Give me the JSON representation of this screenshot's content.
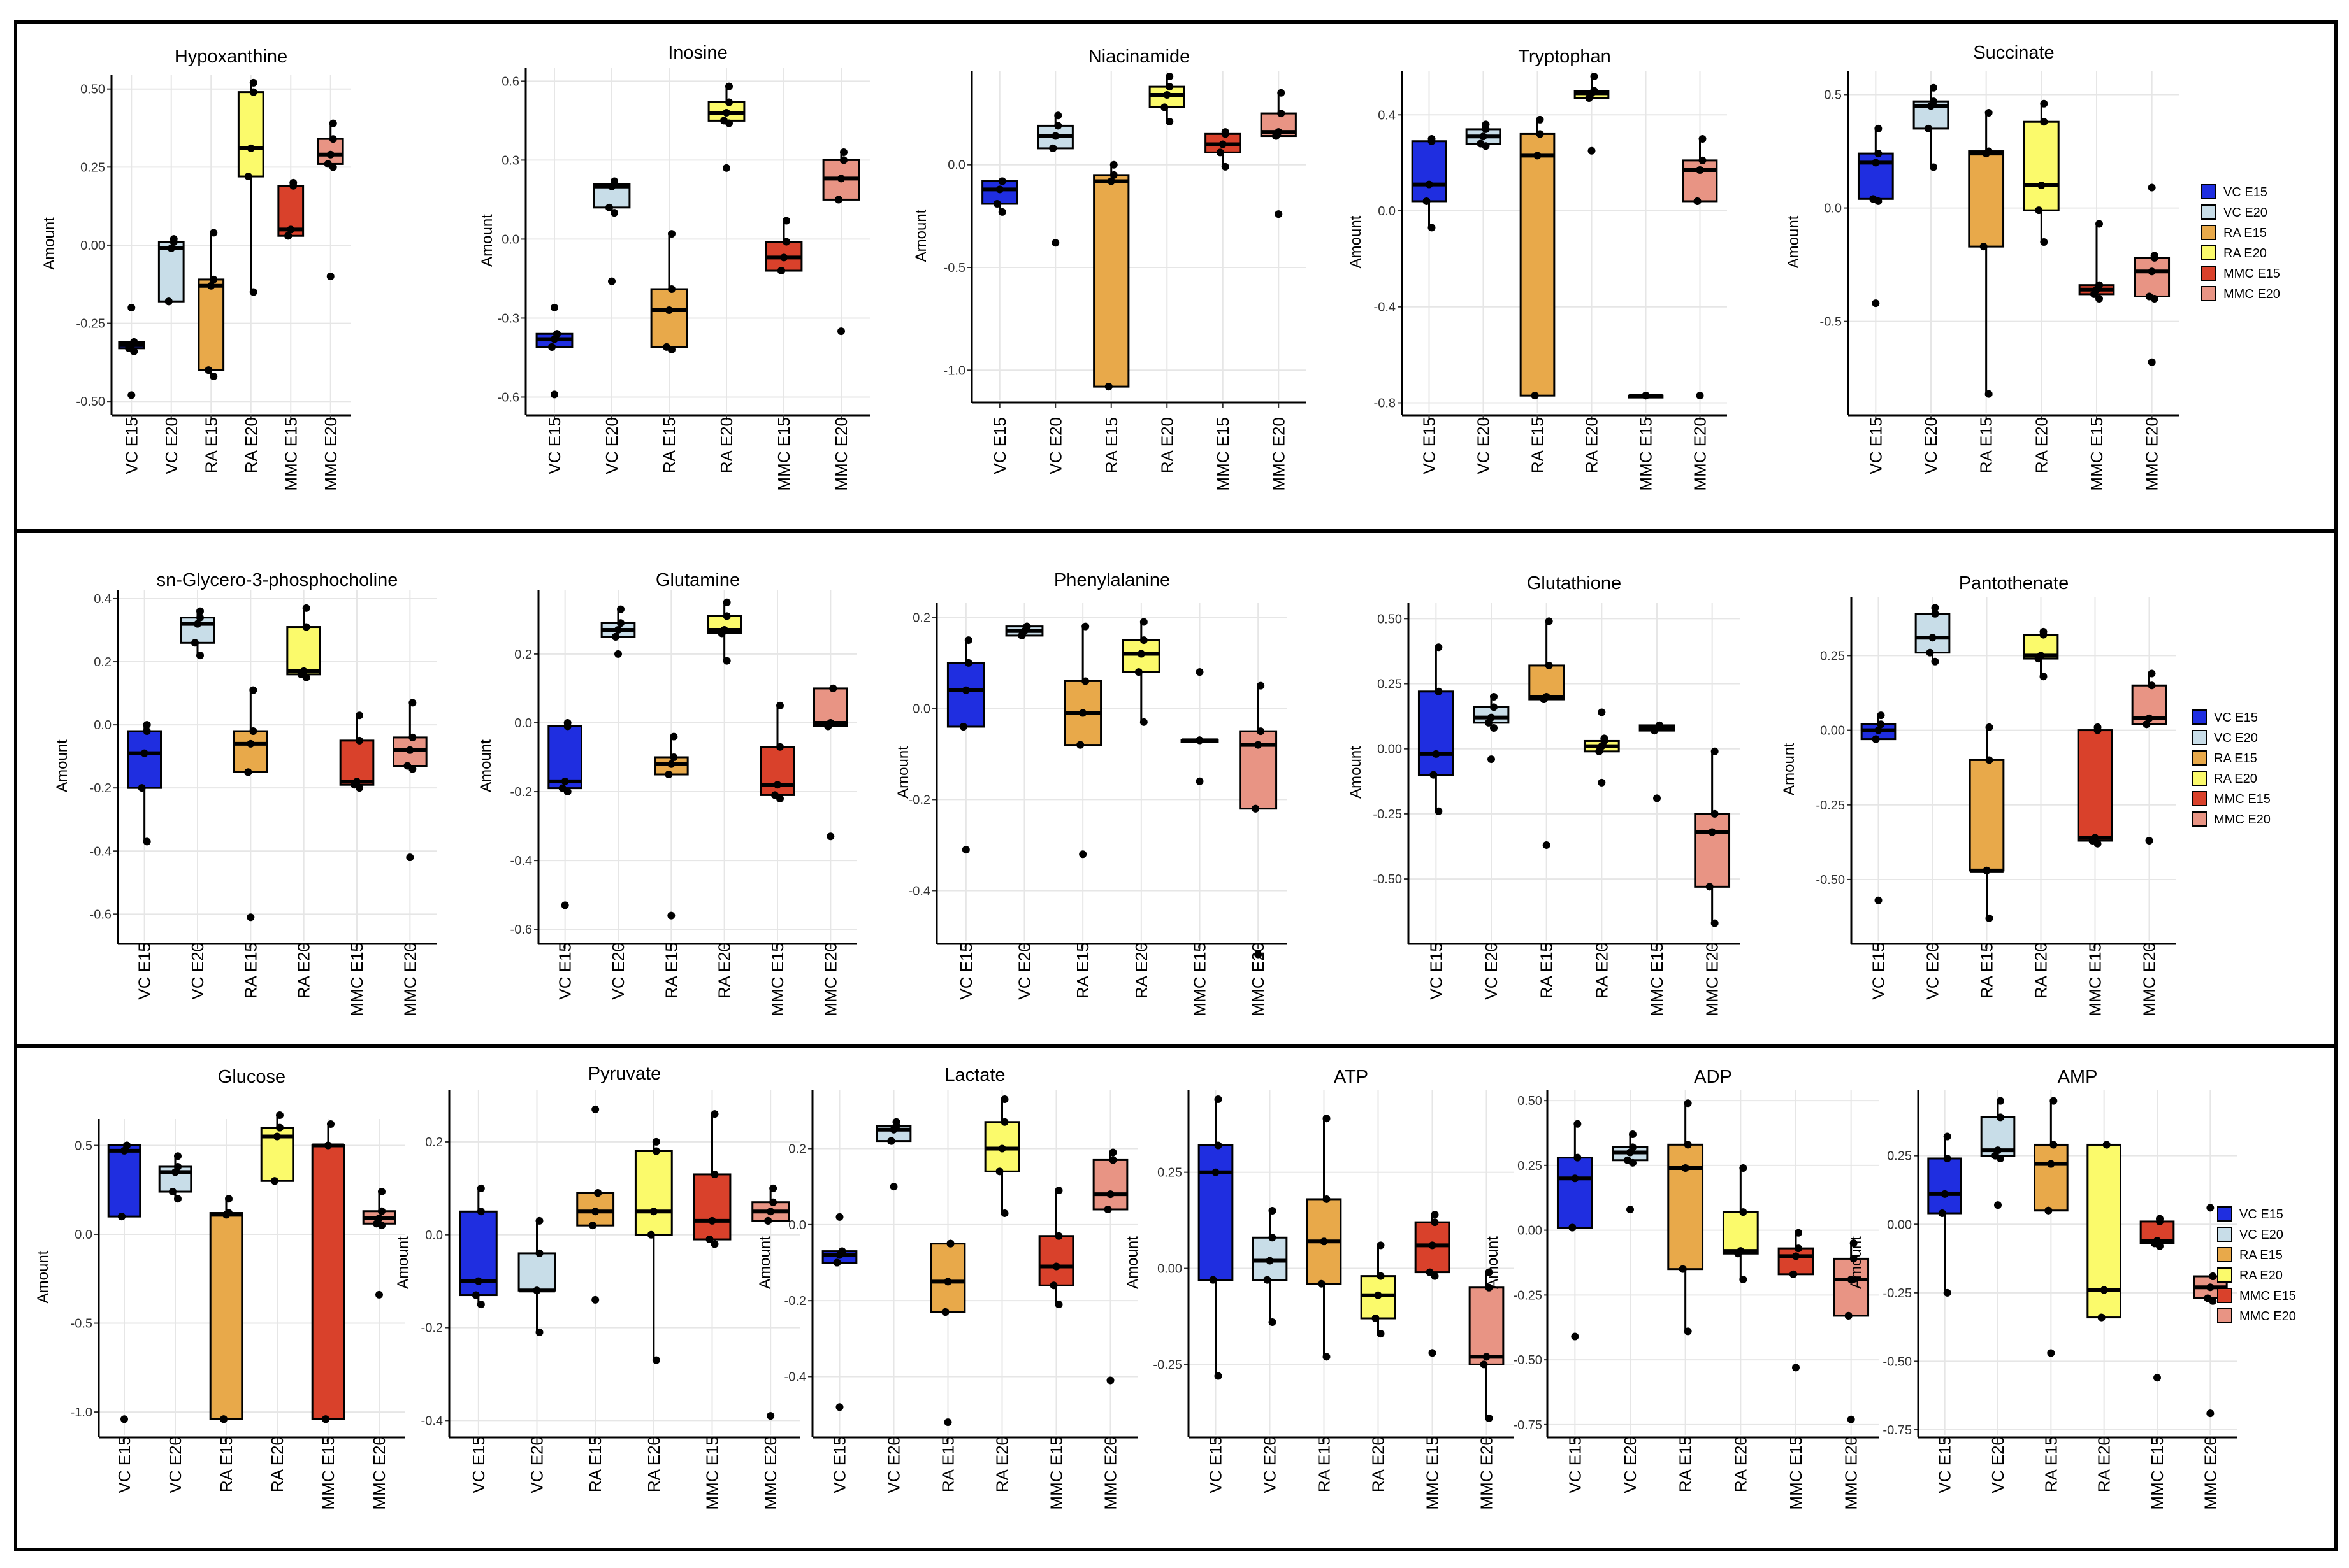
{
  "figure": {
    "y_axis_label": "Amount",
    "groups": [
      "VC E15",
      "VC E20",
      "RA E15",
      "RA E20",
      "MMC E15",
      "MMC E20"
    ],
    "group_colors": [
      "#1f2ee0",
      "#c8dde8",
      "#e8a94a",
      "#fbfa6b",
      "#d9412b",
      "#e89484"
    ],
    "legends": [
      {
        "row": 1,
        "entries": [
          "VC E15",
          "VC E20",
          "RA E15",
          "RA E20",
          "MMC E15",
          "MMC E20"
        ]
      },
      {
        "row": 2,
        "entries": [
          "VC E15",
          "VC E20",
          "RA E15",
          "RA E20",
          "MMC E15",
          "MMC E20"
        ]
      },
      {
        "row": 3,
        "entries": [
          "VC E15",
          "VC E20",
          "RA E15",
          "RA E20",
          "MMC E15",
          "MMC E20"
        ]
      }
    ]
  },
  "chart_data": [
    {
      "type": "box",
      "title": "Hypoxanthine",
      "ylabel": "Amount",
      "ylim": [
        -0.52,
        0.53
      ],
      "yticks": [
        "0.50",
        "0.25",
        "0.00",
        "-0.25",
        "-0.50"
      ],
      "ytick_values": [
        0.5,
        0.25,
        0,
        -0.25,
        -0.5
      ],
      "boxes": [
        [
          -0.34,
          -0.33,
          -0.32,
          -0.31,
          -0.31
        ],
        [
          -0.18,
          -0.18,
          -0.01,
          0.01,
          0.02
        ],
        [
          -0.42,
          -0.4,
          -0.13,
          -0.11,
          0.04
        ],
        [
          -0.15,
          0.22,
          0.31,
          0.49,
          0.52
        ],
        [
          0.03,
          0.03,
          0.05,
          0.19,
          0.2
        ],
        [
          0.25,
          0.26,
          0.29,
          0.34,
          0.39
        ]
      ],
      "outliers": [
        [
          0,
          -0.48
        ],
        [
          0,
          -0.2
        ],
        [
          5,
          -0.1
        ]
      ]
    },
    {
      "type": "box",
      "title": "Inosine",
      "ylabel": "Amount",
      "ylim": [
        -0.64,
        0.63
      ],
      "yticks": [
        "0.6",
        "0.3",
        "0.0",
        "-0.3",
        "-0.6"
      ],
      "ytick_values": [
        0.6,
        0.3,
        0,
        -0.3,
        -0.6
      ],
      "boxes": [
        [
          -0.41,
          -0.41,
          -0.38,
          -0.36,
          -0.36
        ],
        [
          0.1,
          0.12,
          0.2,
          0.21,
          0.22
        ],
        [
          -0.42,
          -0.41,
          -0.27,
          -0.19,
          0.02
        ],
        [
          0.44,
          0.45,
          0.48,
          0.52,
          0.58
        ],
        [
          -0.12,
          -0.12,
          -0.07,
          -0.01,
          0.07
        ],
        [
          0.15,
          0.15,
          0.23,
          0.3,
          0.33
        ]
      ],
      "outliers": [
        [
          0,
          -0.59
        ],
        [
          0,
          -0.26
        ],
        [
          1,
          -0.16
        ],
        [
          3,
          0.27
        ],
        [
          5,
          -0.35
        ]
      ]
    },
    {
      "type": "box",
      "title": "Niacinamide",
      "ylabel": "Amount",
      "ylim": [
        -1.12,
        0.43
      ],
      "yticks": [
        "0.0",
        "-0.5",
        "-1.0"
      ],
      "ytick_values": [
        0,
        -0.5,
        -1
      ],
      "boxes": [
        [
          -0.23,
          -0.19,
          -0.12,
          -0.08,
          -0.08
        ],
        [
          0.08,
          0.08,
          0.14,
          0.19,
          0.24
        ],
        [
          -1.08,
          -1.08,
          -0.08,
          -0.05,
          0.0
        ],
        [
          0.21,
          0.28,
          0.34,
          0.38,
          0.43
        ],
        [
          -0.01,
          0.06,
          0.1,
          0.15,
          0.16
        ],
        [
          0.14,
          0.14,
          0.16,
          0.25,
          0.35
        ]
      ],
      "outliers": [
        [
          1,
          -0.38
        ],
        [
          5,
          -0.24
        ]
      ]
    },
    {
      "type": "box",
      "title": "Tryptophan",
      "ylabel": "Amount",
      "ylim": [
        -0.82,
        0.56
      ],
      "yticks": [
        "0.4",
        "0.0",
        "-0.4",
        "-0.8"
      ],
      "ytick_values": [
        0.4,
        0,
        -0.4,
        -0.8
      ],
      "boxes": [
        [
          -0.07,
          0.04,
          0.11,
          0.29,
          0.3
        ],
        [
          0.27,
          0.28,
          0.31,
          0.34,
          0.36
        ],
        [
          -0.77,
          -0.77,
          0.23,
          0.32,
          0.38
        ],
        [
          0.47,
          0.47,
          0.49,
          0.5,
          0.56
        ],
        [
          -0.77,
          -0.77,
          -0.77,
          -0.77,
          -0.77
        ],
        [
          0.04,
          0.04,
          0.17,
          0.21,
          0.3
        ]
      ],
      "outliers": [
        [
          3,
          0.25
        ],
        [
          5,
          -0.77
        ]
      ]
    },
    {
      "type": "box",
      "title": "Succinate",
      "ylabel": "Amount",
      "ylim": [
        -0.88,
        0.58
      ],
      "yticks": [
        "0.5",
        "0.0",
        "-0.5"
      ],
      "ytick_values": [
        0.5,
        0,
        -0.5
      ],
      "boxes": [
        [
          0.03,
          0.04,
          0.2,
          0.24,
          0.35
        ],
        [
          0.18,
          0.35,
          0.45,
          0.47,
          0.53
        ],
        [
          -0.82,
          -0.17,
          0.24,
          0.25,
          0.42
        ],
        [
          -0.15,
          -0.01,
          0.1,
          0.38,
          0.46
        ],
        [
          -0.4,
          -0.38,
          -0.36,
          -0.34,
          -0.07
        ],
        [
          -0.4,
          -0.39,
          -0.28,
          -0.22,
          -0.21
        ]
      ],
      "outliers": [
        [
          0,
          -0.42
        ],
        [
          5,
          0.09
        ],
        [
          5,
          -0.68
        ]
      ]
    },
    {
      "type": "box",
      "title": "sn-Glycero-3-phosphocholine",
      "ylabel": "Amount",
      "ylim": [
        -0.67,
        0.41
      ],
      "yticks": [
        "0.4",
        "0.2",
        "0.0",
        "-0.2",
        "-0.4",
        "-0.6"
      ],
      "ytick_values": [
        0.4,
        0.2,
        0,
        -0.2,
        -0.4,
        -0.6
      ],
      "boxes": [
        [
          -0.37,
          -0.2,
          -0.09,
          -0.02,
          0.0
        ],
        [
          0.22,
          0.26,
          0.32,
          0.34,
          0.36
        ],
        [
          -0.15,
          -0.15,
          -0.06,
          -0.02,
          0.11
        ],
        [
          0.15,
          0.16,
          0.17,
          0.31,
          0.37
        ],
        [
          -0.2,
          -0.19,
          -0.18,
          -0.05,
          0.03
        ],
        [
          -0.14,
          -0.13,
          -0.08,
          -0.04,
          0.07
        ]
      ],
      "outliers": [
        [
          2,
          -0.61
        ],
        [
          5,
          -0.42
        ]
      ]
    },
    {
      "type": "box",
      "title": "Glutamine",
      "ylabel": "Amount",
      "ylim": [
        -0.62,
        0.37
      ],
      "yticks": [
        "0.2",
        "0.0",
        "-0.2",
        "-0.4",
        "-0.6"
      ],
      "ytick_values": [
        0.2,
        0,
        -0.2,
        -0.4,
        -0.6
      ],
      "boxes": [
        [
          -0.2,
          -0.19,
          -0.17,
          -0.01,
          0.0
        ],
        [
          0.25,
          0.25,
          0.27,
          0.29,
          0.33
        ],
        [
          -0.15,
          -0.15,
          -0.12,
          -0.1,
          -0.04
        ],
        [
          0.18,
          0.26,
          0.27,
          0.31,
          0.35
        ],
        [
          -0.22,
          -0.21,
          -0.18,
          -0.07,
          0.05
        ],
        [
          -0.01,
          -0.01,
          0.0,
          0.1,
          0.1
        ]
      ],
      "outliers": [
        [
          0,
          -0.53
        ],
        [
          1,
          0.2
        ],
        [
          2,
          -0.56
        ],
        [
          5,
          -0.33
        ]
      ]
    },
    {
      "type": "box",
      "title": "Phenylalanine",
      "ylabel": "Amount",
      "ylim": [
        -0.5,
        0.22
      ],
      "yticks": [
        "0.2",
        "0.0",
        "-0.2",
        "-0.4"
      ],
      "ytick_values": [
        0.2,
        0,
        -0.2,
        -0.4
      ],
      "boxes": [
        [
          -0.04,
          -0.04,
          0.04,
          0.1,
          0.15
        ],
        [
          0.16,
          0.16,
          0.17,
          0.18,
          0.18
        ],
        [
          -0.08,
          -0.08,
          -0.01,
          0.06,
          0.18
        ],
        [
          -0.03,
          0.08,
          0.12,
          0.15,
          0.19
        ],
        [
          -0.07,
          -0.07,
          -0.07,
          -0.07,
          -0.07
        ],
        [
          -0.22,
          -0.22,
          -0.08,
          -0.05,
          0.05
        ]
      ],
      "outliers": [
        [
          0,
          -0.31
        ],
        [
          2,
          -0.32
        ],
        [
          4,
          0.08
        ],
        [
          4,
          -0.16
        ],
        [
          5,
          -0.54
        ]
      ]
    },
    {
      "type": "box",
      "title": "Glutathione",
      "ylabel": "Amount",
      "ylim": [
        -0.72,
        0.54
      ],
      "yticks": [
        "0.50",
        "0.25",
        "0.00",
        "-0.25",
        "-0.50"
      ],
      "ytick_values": [
        0.5,
        0.25,
        0,
        -0.25,
        -0.5
      ],
      "boxes": [
        [
          -0.24,
          -0.1,
          -0.02,
          0.22,
          0.39
        ],
        [
          0.08,
          0.1,
          0.12,
          0.16,
          0.2
        ],
        [
          0.19,
          0.19,
          0.2,
          0.32,
          0.49
        ],
        [
          -0.01,
          -0.01,
          0.01,
          0.03,
          0.04
        ],
        [
          0.07,
          0.07,
          0.08,
          0.09,
          0.09
        ],
        [
          -0.67,
          -0.53,
          -0.32,
          -0.25,
          -0.01
        ]
      ],
      "outliers": [
        [
          1,
          -0.04
        ],
        [
          2,
          -0.37
        ],
        [
          3,
          0.14
        ],
        [
          3,
          -0.13
        ],
        [
          4,
          -0.19
        ]
      ]
    },
    {
      "type": "box",
      "title": "Pantothenate",
      "ylabel": "Amount",
      "ylim": [
        -0.69,
        0.43
      ],
      "yticks": [
        "0.25",
        "0.00",
        "-0.25",
        "-0.50"
      ],
      "ytick_values": [
        0.25,
        0,
        -0.25,
        -0.5
      ],
      "boxes": [
        [
          -0.03,
          -0.03,
          0.0,
          0.02,
          0.05
        ],
        [
          0.23,
          0.26,
          0.31,
          0.39,
          0.41
        ],
        [
          -0.63,
          -0.47,
          -0.47,
          -0.1,
          0.01
        ],
        [
          0.18,
          0.24,
          0.25,
          0.32,
          0.33
        ],
        [
          -0.38,
          -0.37,
          -0.36,
          0.0,
          0.01
        ],
        [
          0.02,
          0.02,
          0.04,
          0.15,
          0.19
        ]
      ],
      "outliers": [
        [
          0,
          -0.57
        ],
        [
          5,
          -0.37
        ]
      ]
    },
    {
      "type": "box",
      "title": "Glucose",
      "ylabel": "Amount",
      "ylim": [
        -1.1,
        0.62
      ],
      "yticks": [
        "0.5",
        "0.0",
        "-0.5",
        "-1.0"
      ],
      "ytick_values": [
        0.5,
        0,
        -0.5,
        -1
      ],
      "boxes": [
        [
          0.1,
          0.1,
          0.47,
          0.5,
          0.5
        ],
        [
          0.2,
          0.24,
          0.35,
          0.38,
          0.44
        ],
        [
          -1.04,
          -1.04,
          0.11,
          0.12,
          0.2
        ],
        [
          0.3,
          0.3,
          0.55,
          0.6,
          0.67
        ],
        [
          -1.04,
          -1.04,
          0.5,
          0.5,
          0.62
        ],
        [
          0.05,
          0.06,
          0.09,
          0.13,
          0.24
        ]
      ],
      "outliers": [
        [
          0,
          -1.04
        ],
        [
          5,
          -0.34
        ]
      ]
    },
    {
      "type": "box",
      "title": "Pyruvate",
      "ylabel": "Amount",
      "ylim": [
        -0.42,
        0.3
      ],
      "yticks": [
        "0.2",
        "0.0",
        "-0.2",
        "-0.4"
      ],
      "ytick_values": [
        0.2,
        0,
        -0.2,
        -0.4
      ],
      "boxes": [
        [
          -0.15,
          -0.13,
          -0.1,
          0.05,
          0.1
        ],
        [
          -0.21,
          -0.12,
          -0.12,
          -0.04,
          0.03
        ],
        [
          0.02,
          0.02,
          0.05,
          0.09,
          0.09
        ],
        [
          -0.27,
          0.0,
          0.05,
          0.18,
          0.2
        ],
        [
          -0.02,
          -0.01,
          0.03,
          0.13,
          0.26
        ],
        [
          0.03,
          0.03,
          0.05,
          0.07,
          0.1
        ]
      ],
      "outliers": [
        [
          2,
          0.27
        ],
        [
          2,
          -0.14
        ],
        [
          5,
          -0.39
        ]
      ]
    },
    {
      "type": "box",
      "title": "Lactate",
      "ylabel": "Amount",
      "ylim": [
        -0.54,
        0.34
      ],
      "yticks": [
        "0.2",
        "0.0",
        "-0.2",
        "-0.4"
      ],
      "ytick_values": [
        0.2,
        0,
        -0.2,
        -0.4
      ],
      "boxes": [
        [
          -0.1,
          -0.1,
          -0.08,
          -0.07,
          -0.07
        ],
        [
          0.22,
          0.22,
          0.25,
          0.26,
          0.27
        ],
        [
          -0.23,
          -0.23,
          -0.15,
          -0.05,
          -0.05
        ],
        [
          0.03,
          0.14,
          0.2,
          0.27,
          0.33
        ],
        [
          -0.21,
          -0.16,
          -0.11,
          -0.03,
          0.09
        ],
        [
          0.04,
          0.04,
          0.08,
          0.17,
          0.19
        ]
      ],
      "outliers": [
        [
          0,
          0.02
        ],
        [
          0,
          -0.48
        ],
        [
          1,
          0.1
        ],
        [
          2,
          -0.52
        ],
        [
          5,
          -0.41
        ]
      ]
    },
    {
      "type": "box",
      "title": "ATP",
      "ylabel": "Amount",
      "ylim": [
        -0.42,
        0.45
      ],
      "yticks": [
        "0.25",
        "0.00",
        "-0.25"
      ],
      "ytick_values": [
        0.25,
        0,
        -0.25
      ],
      "boxes": [
        [
          -0.28,
          -0.03,
          0.25,
          0.32,
          0.44
        ],
        [
          -0.14,
          -0.03,
          0.02,
          0.08,
          0.15
        ],
        [
          -0.23,
          -0.04,
          0.07,
          0.18,
          0.39
        ],
        [
          -0.17,
          -0.13,
          -0.07,
          -0.02,
          0.06
        ],
        [
          -0.02,
          -0.01,
          0.06,
          0.12,
          0.14
        ],
        [
          -0.39,
          -0.25,
          -0.23,
          -0.05,
          -0.01
        ]
      ],
      "outliers": [
        [
          4,
          -0.22
        ]
      ]
    },
    {
      "type": "box",
      "title": "ADP",
      "ylabel": "Amount",
      "ylim": [
        -0.77,
        0.52
      ],
      "yticks": [
        "0.50",
        "0.25",
        "0.00",
        "-0.25",
        "-0.50",
        "-0.75"
      ],
      "ytick_values": [
        0.5,
        0.25,
        0,
        -0.25,
        -0.5,
        -0.75
      ],
      "boxes": [
        [
          0.01,
          0.01,
          0.2,
          0.28,
          0.41
        ],
        [
          0.26,
          0.27,
          0.3,
          0.32,
          0.37
        ],
        [
          -0.39,
          -0.15,
          0.24,
          0.33,
          0.49
        ],
        [
          -0.19,
          -0.09,
          -0.08,
          0.07,
          0.24
        ],
        [
          -0.17,
          -0.17,
          -0.1,
          -0.07,
          -0.01
        ],
        [
          -0.33,
          -0.33,
          -0.19,
          -0.11,
          -0.05
        ]
      ],
      "outliers": [
        [
          0,
          -0.41
        ],
        [
          1,
          0.08
        ],
        [
          4,
          -0.53
        ],
        [
          5,
          -0.73
        ]
      ]
    },
    {
      "type": "box",
      "title": "AMP",
      "ylabel": "Amount",
      "ylim": [
        -0.75,
        0.47
      ],
      "yticks": [
        "0.25",
        "0.00",
        "-0.25",
        "-0.50",
        "-0.75"
      ],
      "ytick_values": [
        0.25,
        0,
        -0.25,
        -0.5,
        -0.75
      ],
      "boxes": [
        [
          -0.25,
          0.04,
          0.11,
          0.24,
          0.32
        ],
        [
          0.24,
          0.25,
          0.27,
          0.39,
          0.45
        ],
        [
          0.05,
          0.05,
          0.22,
          0.29,
          0.45
        ],
        [
          -0.34,
          -0.34,
          -0.24,
          0.29,
          0.29
        ],
        [
          -0.08,
          -0.07,
          -0.06,
          0.01,
          0.02
        ],
        [
          -0.28,
          -0.27,
          -0.23,
          -0.19,
          -0.19
        ]
      ],
      "outliers": [
        [
          1,
          0.07
        ],
        [
          2,
          -0.47
        ],
        [
          4,
          -0.56
        ],
        [
          5,
          0.06
        ],
        [
          5,
          -0.69
        ]
      ]
    }
  ]
}
